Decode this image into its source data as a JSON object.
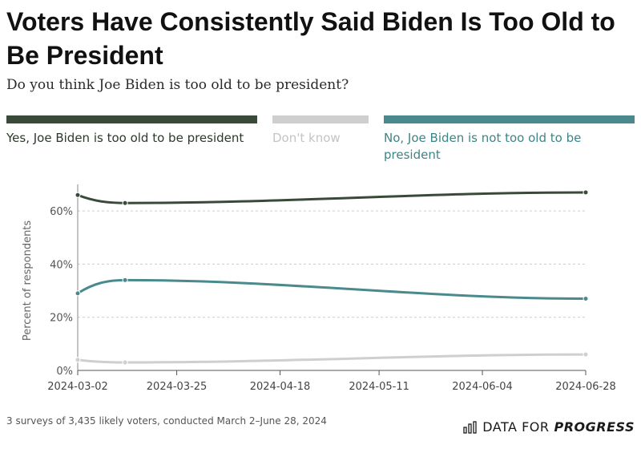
{
  "header": {
    "title": "Voters Have Consistently Said Biden Is Too Old to Be President",
    "subtitle": "Do you think Joe Biden is too old to be president?"
  },
  "legend": [
    {
      "label": "Yes, Joe Biden is too old to be president",
      "color": "#3a4a3a"
    },
    {
      "label": "Don't know",
      "color": "#cfcfcf"
    },
    {
      "label": "No, Joe Biden is not too old to be president",
      "color": "#4a8a8c"
    }
  ],
  "footer": {
    "note": "3 surveys of 3,435 likely voters, conducted March 2–June 28, 2024",
    "brand_prefix": "DATA FOR",
    "brand_strong": "PROGRESS",
    "brand_icon": "bar-chart-icon"
  },
  "chart_data": {
    "type": "line",
    "ylabel": "Percent of respondents",
    "xlabel": "",
    "ylim": [
      0,
      70
    ],
    "yticks": [
      0,
      20,
      40,
      60
    ],
    "ytick_labels": [
      "0%",
      "20%",
      "40%",
      "60%"
    ],
    "xlim": [
      "2024-03-02",
      "2024-06-28"
    ],
    "xticks": [
      "2024-03-02",
      "2024-03-25",
      "2024-04-18",
      "2024-05-11",
      "2024-06-04",
      "2024-06-28"
    ],
    "grid": true,
    "legend_position": "top",
    "series": [
      {
        "name": "Yes, Joe Biden is too old to be president",
        "color": "#3a4a3a",
        "x": [
          "2024-03-02",
          "2024-03-13",
          "2024-06-28"
        ],
        "values": [
          66,
          63,
          67
        ]
      },
      {
        "name": "Don't know",
        "color": "#cfcfcf",
        "x": [
          "2024-03-02",
          "2024-03-13",
          "2024-06-28"
        ],
        "values": [
          4,
          3,
          6
        ]
      },
      {
        "name": "No, Joe Biden is not too old to be president",
        "color": "#4a8a8c",
        "x": [
          "2024-03-02",
          "2024-03-13",
          "2024-06-28"
        ],
        "values": [
          29,
          34,
          27
        ]
      }
    ]
  }
}
